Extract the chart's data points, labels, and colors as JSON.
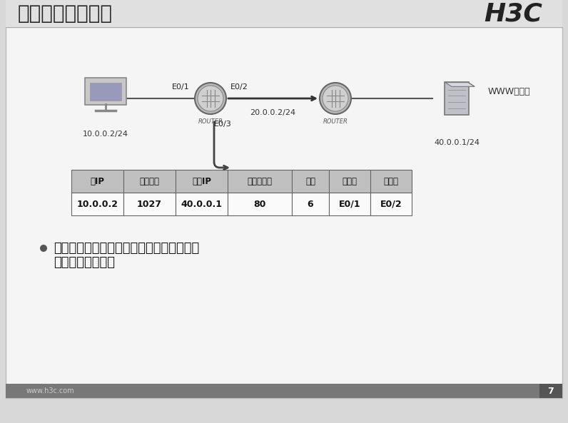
{
  "title": "快速转发表的生成",
  "h3c_logo": "H3C",
  "bg_color": "#d8d8d8",
  "slide_bg": "#f5f5f5",
  "header_bg": "#e0e0e0",
  "footer_bg": "#787878",
  "footer_text": "www.h3c.com",
  "page_number": "7",
  "pc_label": "10.0.0.2/24",
  "router1_label": "ROUTER",
  "router2_label": "ROUTER",
  "server_label": "WWW服务器",
  "server_ip": "40.0.0.1/24",
  "link_label": "20.0.0.2/24",
  "e01_label": "E0/1",
  "e02_label": "E0/2",
  "e03_label": "E0/3",
  "table_headers": [
    "源IP",
    "源端口号",
    "目的IP",
    "目的端口号",
    "协议",
    "入端口",
    "出端口"
  ],
  "table_data": [
    "10.0.0.2",
    "1027",
    "40.0.0.1",
    "80",
    "6",
    "E0/1",
    "E0/2"
  ],
  "table_header_bg": "#c0c0c0",
  "table_border": "#666666",
  "bullet_text_line1": "快速转发表是根据数据流中第一个报文的五",
  "bullet_text_line2": "元组信息而生成的",
  "title_color": "#222222",
  "text_color": "#111111"
}
